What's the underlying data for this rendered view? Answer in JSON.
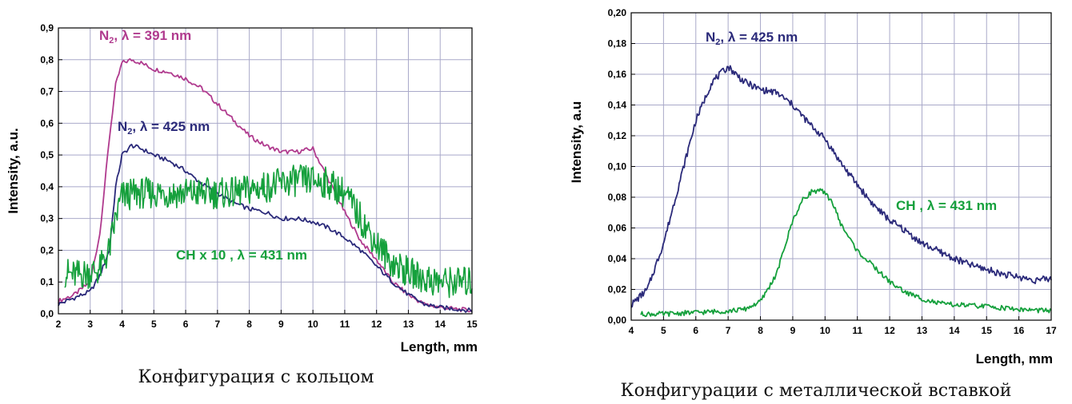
{
  "chart_data": [
    {
      "type": "line",
      "caption": "Конфигурация с кольцом",
      "xlabel": "Length, mm",
      "ylabel": "Intensity, a.u.",
      "xlim": [
        2,
        15
      ],
      "ylim": [
        0,
        0.9
      ],
      "xticks": [
        "2",
        "3",
        "4",
        "5",
        "6",
        "7",
        "8",
        "9",
        "10",
        "11",
        "12",
        "13",
        "14",
        "15"
      ],
      "yticks": [
        "0,0",
        "0,1",
        "0,2",
        "0,3",
        "0,4",
        "0,5",
        "0,6",
        "0,7",
        "0,8",
        "0,9"
      ],
      "grid": true,
      "series": [
        {
          "name": "N2, λ = 391 nm",
          "color": "#b03a8e",
          "x": [
            2.0,
            2.5,
            3.0,
            3.3,
            3.6,
            3.8,
            4.0,
            4.3,
            4.6,
            5.0,
            5.5,
            6.0,
            6.5,
            7.0,
            7.5,
            8.0,
            8.5,
            9.0,
            9.5,
            10.0,
            10.3,
            10.6,
            11.0,
            11.5,
            12.0,
            12.5,
            13.0,
            13.5,
            14.0,
            14.5,
            15.0
          ],
          "y": [
            0.04,
            0.06,
            0.1,
            0.25,
            0.55,
            0.72,
            0.79,
            0.8,
            0.79,
            0.77,
            0.76,
            0.74,
            0.71,
            0.66,
            0.61,
            0.56,
            0.53,
            0.51,
            0.51,
            0.52,
            0.46,
            0.4,
            0.32,
            0.23,
            0.17,
            0.1,
            0.06,
            0.03,
            0.02,
            0.015,
            0.01
          ]
        },
        {
          "name": "N2, λ = 425 nm",
          "color": "#2b2a7a",
          "x": [
            2.0,
            2.5,
            3.0,
            3.3,
            3.6,
            3.8,
            4.0,
            4.3,
            4.6,
            5.0,
            5.5,
            6.0,
            6.5,
            7.0,
            7.5,
            8.0,
            8.5,
            9.0,
            9.5,
            10.0,
            10.5,
            11.0,
            11.5,
            12.0,
            12.5,
            13.0,
            13.5,
            14.0,
            14.5,
            15.0
          ],
          "y": [
            0.03,
            0.05,
            0.07,
            0.12,
            0.2,
            0.4,
            0.5,
            0.53,
            0.52,
            0.5,
            0.48,
            0.45,
            0.41,
            0.38,
            0.35,
            0.33,
            0.32,
            0.3,
            0.3,
            0.29,
            0.27,
            0.24,
            0.2,
            0.15,
            0.1,
            0.06,
            0.03,
            0.02,
            0.015,
            0.01
          ]
        },
        {
          "name": "CH x 10, λ = 431 nm",
          "color": "#15a03c",
          "x": [
            2.2,
            2.5,
            3.0,
            3.3,
            3.6,
            3.8,
            4.0,
            4.5,
            5.0,
            5.5,
            6.0,
            6.5,
            7.0,
            7.5,
            8.0,
            8.5,
            9.0,
            9.5,
            10.0,
            10.5,
            11.0,
            11.5,
            12.0,
            12.5,
            13.0,
            13.5,
            14.0,
            14.5,
            15.0
          ],
          "y": [
            0.13,
            0.12,
            0.13,
            0.14,
            0.2,
            0.3,
            0.37,
            0.38,
            0.38,
            0.38,
            0.38,
            0.38,
            0.38,
            0.38,
            0.39,
            0.4,
            0.41,
            0.42,
            0.42,
            0.41,
            0.38,
            0.3,
            0.22,
            0.16,
            0.13,
            0.11,
            0.1,
            0.1,
            0.1
          ]
        }
      ],
      "annotations": {
        "n2_391": {
          "base": "N",
          "sub": "2",
          "rest": ", λ = 391 nm"
        },
        "n2_425": {
          "base": "N",
          "sub": "2",
          "rest": ",  λ = 425 nm"
        },
        "ch": {
          "text": "CH x 10 ,  λ = 431 nm"
        }
      }
    },
    {
      "type": "line",
      "caption": "Конфигурации с металлической вставкой",
      "xlabel": "Length, mm",
      "ylabel": "Intensity, a.u",
      "xlim": [
        4,
        17
      ],
      "ylim": [
        0,
        0.2
      ],
      "xticks": [
        "4",
        "5",
        "6",
        "7",
        "8",
        "9",
        "10",
        "11",
        "12",
        "13",
        "14",
        "15",
        "16",
        "17"
      ],
      "yticks": [
        "0,00",
        "0,02",
        "0,04",
        "0,06",
        "0,08",
        "0,10",
        "0,12",
        "0,14",
        "0,16",
        "0,18",
        "0,20"
      ],
      "grid": true,
      "series": [
        {
          "name": "N2, λ = 425 nm",
          "color": "#2b2a7a",
          "x": [
            4.0,
            4.5,
            5.0,
            5.5,
            6.0,
            6.5,
            7.0,
            7.5,
            8.0,
            8.5,
            9.0,
            9.5,
            10.0,
            10.5,
            11.0,
            11.5,
            12.0,
            12.5,
            13.0,
            13.5,
            14.0,
            14.5,
            15.0,
            15.5,
            16.0,
            16.5,
            17.0
          ],
          "y": [
            0.01,
            0.02,
            0.05,
            0.09,
            0.13,
            0.155,
            0.165,
            0.155,
            0.15,
            0.148,
            0.14,
            0.128,
            0.118,
            0.102,
            0.088,
            0.075,
            0.065,
            0.058,
            0.05,
            0.045,
            0.04,
            0.036,
            0.033,
            0.03,
            0.028,
            0.026,
            0.027
          ]
        },
        {
          "name": "CH, λ = 431 nm",
          "color": "#15a03c",
          "x": [
            4.3,
            5.0,
            6.0,
            7.0,
            7.5,
            8.0,
            8.5,
            9.0,
            9.3,
            9.6,
            9.9,
            10.2,
            10.5,
            11.0,
            11.5,
            12.0,
            12.5,
            13.0,
            13.5,
            14.0,
            15.0,
            16.0,
            17.0
          ],
          "y": [
            0.004,
            0.004,
            0.005,
            0.006,
            0.007,
            0.012,
            0.03,
            0.065,
            0.078,
            0.084,
            0.084,
            0.078,
            0.062,
            0.045,
            0.035,
            0.025,
            0.018,
            0.014,
            0.011,
            0.01,
            0.009,
            0.007,
            0.006
          ]
        }
      ],
      "annotations": {
        "n2_425": {
          "base": "N",
          "sub": "2",
          "rest": ",  λ = 425 nm"
        },
        "ch": {
          "text": "CH ,  λ = 431 nm"
        }
      }
    }
  ]
}
